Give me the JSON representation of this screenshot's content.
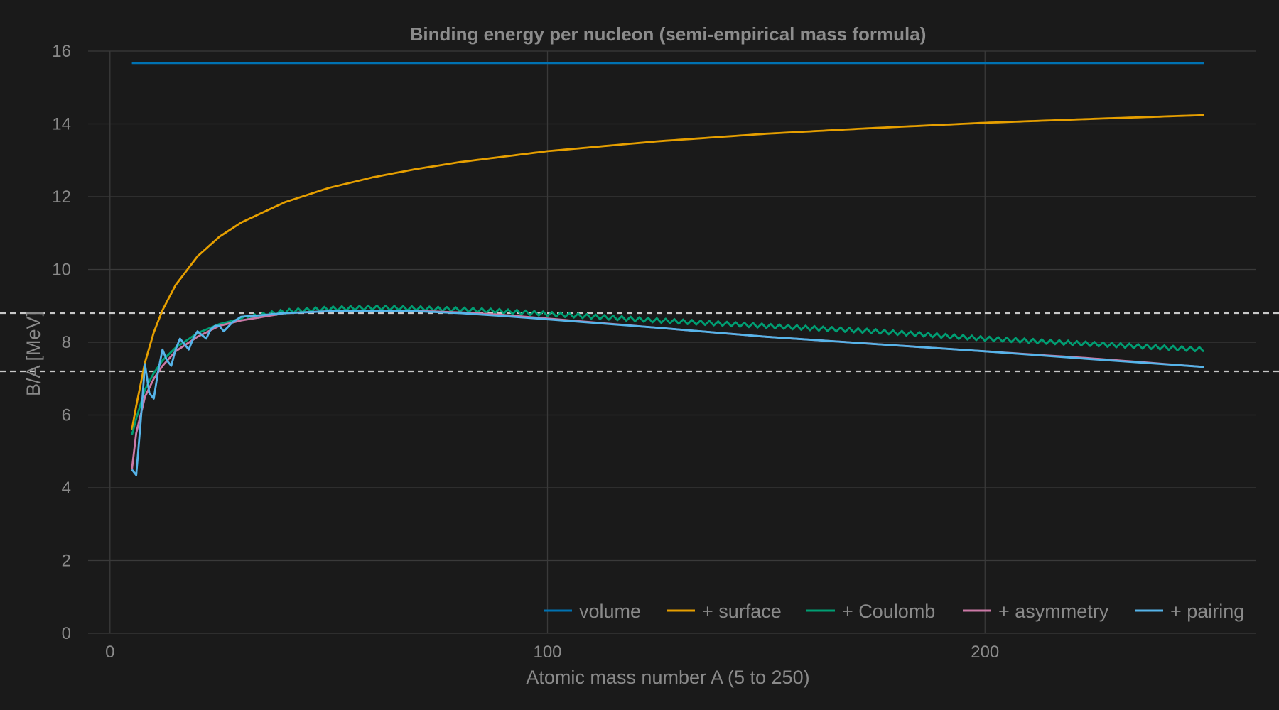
{
  "chart_data": {
    "type": "line",
    "title": "Binding energy per nucleon (semi-empirical mass formula)",
    "xlabel": "Atomic mass number A (5 to 250)",
    "ylabel": "B/A [MeV]",
    "xlim": [
      -5,
      262
    ],
    "ylim": [
      0,
      16
    ],
    "xticks": [
      0,
      100,
      200
    ],
    "yticks": [
      0,
      2,
      4,
      6,
      8,
      10,
      12,
      14,
      16
    ],
    "grid": true,
    "legend_position": "bottom-right",
    "reference_lines": [
      {
        "axis": "y",
        "value": 8.8,
        "style": "dashed",
        "color": "#c8c8c8"
      },
      {
        "axis": "y",
        "value": 7.2,
        "style": "dashed",
        "color": "#c8c8c8"
      }
    ],
    "series": [
      {
        "name": "volume",
        "color": "#0072b2",
        "x": [
          5,
          250
        ],
        "y": [
          15.67,
          15.67
        ]
      },
      {
        "name": "+ surface",
        "color": "#e69f00",
        "x": [
          5,
          6,
          8,
          10,
          12,
          15,
          20,
          25,
          30,
          40,
          50,
          60,
          70,
          80,
          100,
          125,
          150,
          175,
          200,
          225,
          250
        ],
        "y": [
          5.6,
          6.25,
          7.44,
          8.27,
          8.88,
          9.57,
          10.36,
          10.9,
          11.29,
          11.85,
          12.24,
          12.53,
          12.76,
          12.95,
          13.25,
          13.52,
          13.73,
          13.89,
          14.03,
          14.14,
          14.24
        ]
      },
      {
        "name": "+ Coulomb",
        "color": "#009e73",
        "x": [
          5,
          6,
          8,
          10,
          12,
          15,
          20,
          25,
          30,
          40,
          50,
          60,
          70,
          80,
          90,
          100,
          125,
          150,
          175,
          200,
          225,
          250
        ],
        "y": [
          5.45,
          5.9,
          6.7,
          7.15,
          7.5,
          7.85,
          8.25,
          8.5,
          8.65,
          8.85,
          8.92,
          8.95,
          8.93,
          8.9,
          8.85,
          8.78,
          8.6,
          8.45,
          8.3,
          8.1,
          7.95,
          7.8
        ]
      },
      {
        "name": "+ asymmetry",
        "color": "#cc79a7",
        "x": [
          5,
          6,
          8,
          10,
          12,
          15,
          20,
          25,
          30,
          40,
          50,
          60,
          70,
          80,
          90,
          100,
          125,
          150,
          175,
          200,
          225,
          250
        ],
        "y": [
          4.5,
          5.5,
          6.5,
          7.0,
          7.35,
          7.75,
          8.15,
          8.45,
          8.6,
          8.8,
          8.85,
          8.87,
          8.86,
          8.82,
          8.75,
          8.65,
          8.4,
          8.15,
          7.95,
          7.75,
          7.55,
          7.32
        ]
      },
      {
        "name": "+ pairing",
        "color": "#56b4e9",
        "x": [
          5,
          6,
          7,
          8,
          9,
          10,
          11,
          12,
          13,
          14,
          15,
          16,
          17,
          18,
          19,
          20,
          21,
          22,
          23,
          24,
          25,
          26,
          28,
          30,
          35,
          40,
          50,
          60,
          70,
          80,
          90,
          100,
          125,
          150,
          175,
          200,
          225,
          250
        ],
        "y": [
          4.5,
          4.35,
          5.8,
          7.4,
          6.6,
          6.45,
          7.2,
          7.8,
          7.5,
          7.35,
          7.8,
          8.1,
          7.95,
          7.8,
          8.1,
          8.3,
          8.2,
          8.1,
          8.35,
          8.45,
          8.45,
          8.3,
          8.55,
          8.7,
          8.75,
          8.8,
          8.85,
          8.86,
          8.85,
          8.8,
          8.72,
          8.63,
          8.4,
          8.15,
          7.95,
          7.75,
          7.53,
          7.32
        ]
      }
    ]
  }
}
